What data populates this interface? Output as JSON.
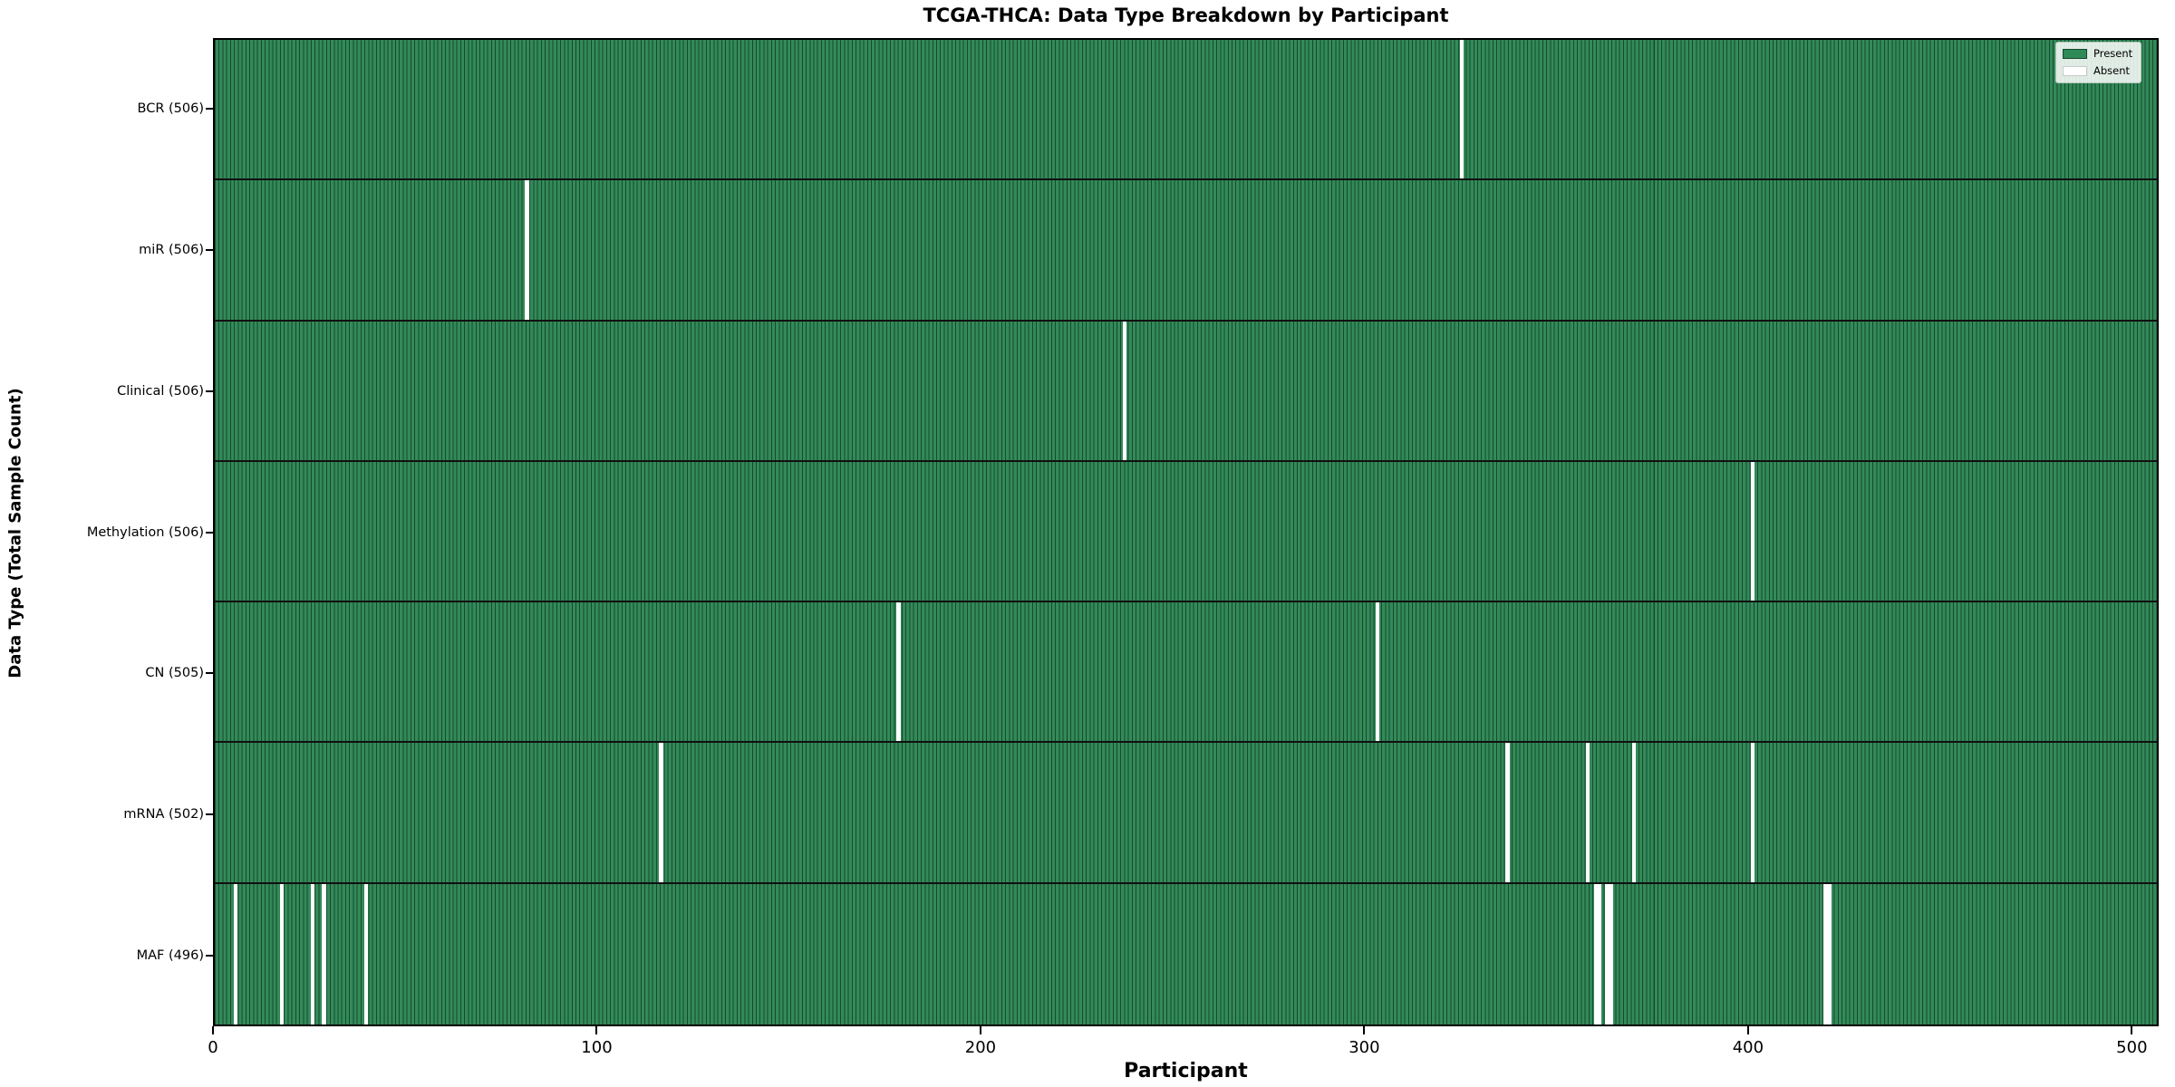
{
  "title": "TCGA-THCA: Data Type Breakdown by Participant",
  "xlabel": "Participant",
  "ylabel": "Data Type (Total Sample Count)",
  "legend": {
    "present_label": "Present",
    "absent_label": "Absent"
  },
  "colors": {
    "present": "#2E8B57",
    "absent": "#FFFFFF",
    "bar_edge": "#0c3420",
    "axis": "#000000"
  },
  "chart_data": {
    "type": "heatmap",
    "title": "TCGA-THCA: Data Type Breakdown by Participant",
    "xlabel": "Participant",
    "ylabel": "Data Type (Total Sample Count)",
    "xlim": [
      0,
      507
    ],
    "x_ticks": [
      0,
      100,
      200,
      300,
      400,
      500
    ],
    "grid": false,
    "legend_position": "upper right",
    "legend_entries": [
      "Present",
      "Absent"
    ],
    "total_participants": 507,
    "rows": [
      {
        "label": "BCR (506)",
        "data_type": "BCR",
        "present_count": 506,
        "absent_participants": [
          325
        ]
      },
      {
        "label": "miR (506)",
        "data_type": "miR",
        "present_count": 506,
        "absent_participants": [
          81
        ]
      },
      {
        "label": "Clinical (506)",
        "data_type": "Clinical",
        "present_count": 506,
        "absent_participants": [
          237
        ]
      },
      {
        "label": "Methylation (506)",
        "data_type": "Methylation",
        "present_count": 506,
        "absent_participants": [
          401
        ]
      },
      {
        "label": "CN (505)",
        "data_type": "CN",
        "present_count": 505,
        "absent_participants": [
          178,
          303
        ]
      },
      {
        "label": "mRNA (502)",
        "data_type": "mRNA",
        "present_count": 502,
        "absent_participants": [
          116,
          337,
          358,
          370,
          401
        ]
      },
      {
        "label": "MAF (496)",
        "data_type": "MAF",
        "present_count": 496,
        "absent_participants": [
          5,
          17,
          25,
          28,
          39,
          360,
          361,
          363,
          364,
          420,
          421
        ]
      }
    ]
  }
}
